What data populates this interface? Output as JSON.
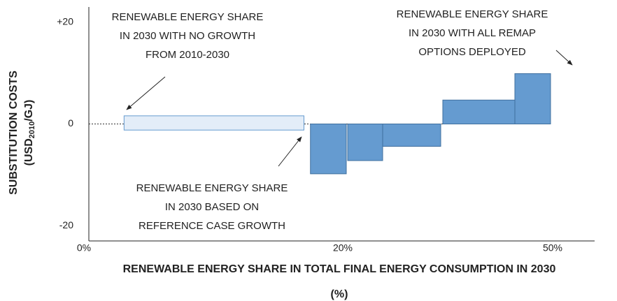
{
  "chart_data": {
    "type": "bar",
    "xlabel": [
      "RENEWABLE ENERGY SHARE IN TOTAL FINAL ENERGY CONSUMPTION IN 2030",
      "(%)"
    ],
    "ylabel": "SUBSTITUTION COSTS",
    "ylabel_unit": {
      "base": "(USD",
      "subscript": "2010",
      "rest": "/GJ)"
    },
    "xlim": [
      0,
      56
    ],
    "xticks": [
      {
        "value": 0,
        "label": "0%"
      },
      {
        "value": 20,
        "label": "20%"
      },
      {
        "value": 50,
        "label": "50%"
      }
    ],
    "ylim": [
      -23,
      23
    ],
    "yticks": [
      {
        "value": 20,
        "label": "+20"
      },
      0,
      -20
    ],
    "zero_line": true,
    "color": "#659bd0",
    "baseline_band": {
      "x": [
        3.1,
        17.0
      ],
      "y": [
        -1.2,
        1.6
      ],
      "color": "#e3edf8"
    },
    "bars": [
      {
        "x": [
          17.5,
          20.5
        ],
        "value": -9.8
      },
      {
        "x": [
          20.7,
          25.7
        ],
        "value": -7.2
      },
      {
        "x": [
          25.7,
          34.0
        ],
        "value": -4.4
      },
      {
        "x": [
          34.3,
          44.6
        ],
        "value": 4.7
      },
      {
        "x": [
          44.6,
          49.7
        ],
        "value": 9.9
      }
    ],
    "annotations": [
      [
        "RENEWABLE ENERGY SHARE",
        "IN 2030 WITH NO GROWTH",
        "FROM 2010-2030"
      ],
      [
        "RENEWABLE ENERGY SHARE",
        "IN 2030 BASED ON",
        "REFERENCE CASE GROWTH"
      ],
      [
        "RENEWABLE ENERGY SHARE",
        "IN 2030 WITH ALL REMAP",
        "OPTIONS DEPLOYED"
      ]
    ]
  }
}
